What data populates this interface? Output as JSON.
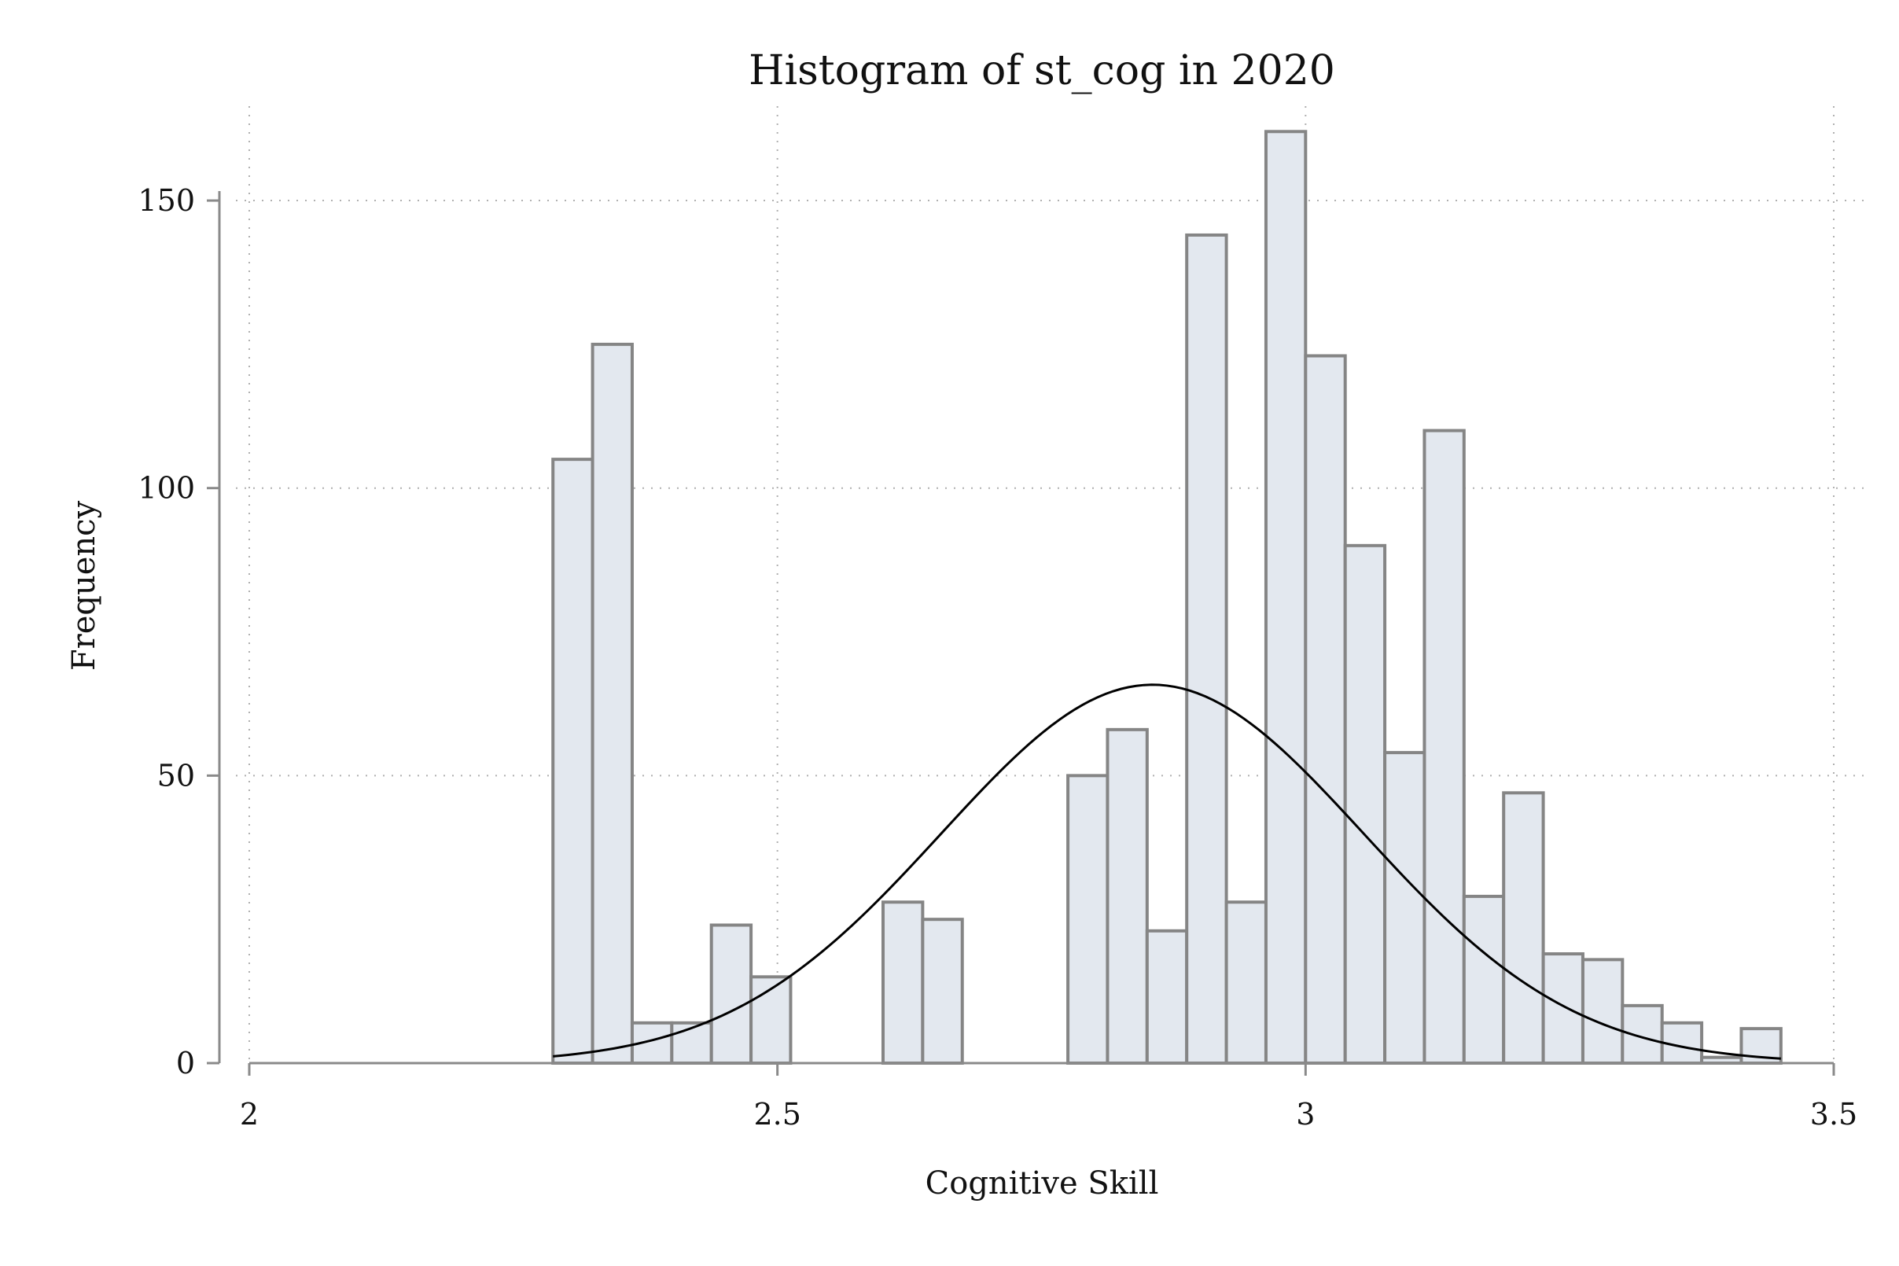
{
  "chart_data": {
    "type": "bar",
    "title": "Histogram of st_cog in 2020",
    "xlabel": "Cognitive Skill",
    "ylabel": "Frequency",
    "xlim": [
      2,
      3.5
    ],
    "ylim": [
      0,
      162
    ],
    "x_ticks": [
      2,
      2.5,
      3,
      3.5
    ],
    "x_tick_labels": [
      "2",
      "2.5",
      "3",
      "3.5"
    ],
    "y_ticks": [
      0,
      50,
      100,
      150
    ],
    "y_tick_labels": [
      "0",
      "50",
      "100",
      "150"
    ],
    "grid": true,
    "legend": "none",
    "bin_width": 0.0375,
    "bins": [
      {
        "start": 2.2875,
        "value": 105
      },
      {
        "start": 2.325,
        "value": 125
      },
      {
        "start": 2.3625,
        "value": 7
      },
      {
        "start": 2.4,
        "value": 7
      },
      {
        "start": 2.4375,
        "value": 24
      },
      {
        "start": 2.475,
        "value": 15
      },
      {
        "start": 2.6,
        "value": 28
      },
      {
        "start": 2.6375,
        "value": 25
      },
      {
        "start": 2.775,
        "value": 50
      },
      {
        "start": 2.8125,
        "value": 58
      },
      {
        "start": 2.85,
        "value": 23
      },
      {
        "start": 2.8875,
        "value": 144
      },
      {
        "start": 2.925,
        "value": 28
      },
      {
        "start": 2.9625,
        "value": 162
      },
      {
        "start": 3,
        "value": 123
      },
      {
        "start": 3.0375,
        "value": 90
      },
      {
        "start": 3.075,
        "value": 54
      },
      {
        "start": 3.1125,
        "value": 110
      },
      {
        "start": 3.15,
        "value": 29
      },
      {
        "start": 3.1875,
        "value": 47
      },
      {
        "start": 3.225,
        "value": 19
      },
      {
        "start": 3.2625,
        "value": 18
      },
      {
        "start": 3.3,
        "value": 10
      },
      {
        "start": 3.3375,
        "value": 7
      },
      {
        "start": 3.375,
        "value": 1
      },
      {
        "start": 3.4125,
        "value": 6
      }
    ],
    "normal_curve": {
      "mean": 2.855,
      "sd": 0.2,
      "peak": 65.8,
      "x_range": [
        2.2875,
        3.45
      ]
    },
    "colors": {
      "bar_fill": "#e3e8ef",
      "bar_edge": "#858585",
      "curve": "#000000",
      "grid": "#b0b0b0"
    }
  }
}
